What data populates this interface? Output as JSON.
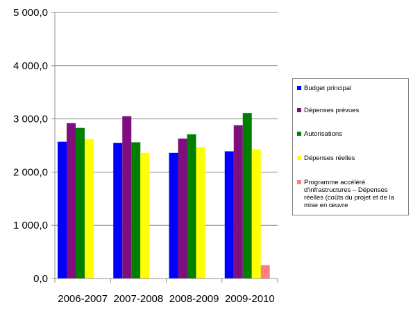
{
  "chart_data": {
    "type": "bar",
    "categories": [
      "2006-2007",
      "2007-2008",
      "2008-2009",
      "2009-2010"
    ],
    "series": [
      {
        "name": "Budget principal",
        "color": "#0000ff",
        "values": [
          2570,
          2550,
          2360,
          2390
        ]
      },
      {
        "name": "Dépenses prévues",
        "color": "#7f0f7f",
        "values": [
          2920,
          3050,
          2630,
          2880
        ]
      },
      {
        "name": "Autorisations",
        "color": "#007f00",
        "values": [
          2830,
          2560,
          2710,
          3110
        ]
      },
      {
        "name": "Dépenses réelles",
        "color": "#ffff00",
        "values": [
          2620,
          2360,
          2470,
          2430
        ]
      },
      {
        "name": "Programme accéléré d'infrastructures – Dépenses réelles (coûts du projet et de la mise en œuvre",
        "color": "#ff8080",
        "values": [
          null,
          null,
          null,
          250
        ]
      }
    ],
    "yticks": [
      "0,0",
      "1 000,0",
      "2 000,0",
      "3 000,0",
      "4 000,0",
      "5 000,0"
    ],
    "ylim": [
      0,
      5000
    ],
    "grid": true,
    "legend_position": "right"
  }
}
